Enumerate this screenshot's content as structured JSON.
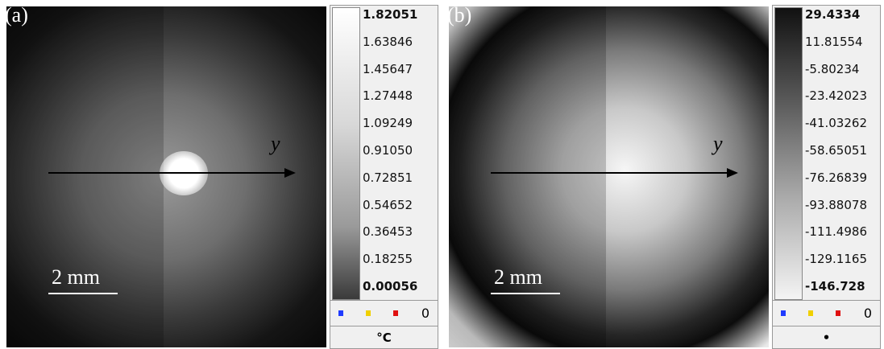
{
  "panels": [
    {
      "label": "(a)",
      "axis_label": "y",
      "scale_bar": "2 mm",
      "colorbar": {
        "labels": [
          "1.82051",
          "1.63846",
          "1.45647",
          "1.27448",
          "1.09249",
          "0.91050",
          "0.72851",
          "0.54652",
          "0.36453",
          "0.18255",
          "0.00056"
        ],
        "count": "0",
        "unit": "°C"
      }
    },
    {
      "label": "(b)",
      "axis_label": "y",
      "scale_bar": "2 mm",
      "colorbar": {
        "labels": [
          "29.4334",
          "11.81554",
          "-5.80234",
          "-23.42023",
          "-41.03262",
          "-58.65051",
          "-76.26839",
          "-93.88078",
          "-111.4986",
          "-129.1165",
          "-146.728"
        ],
        "count": "0",
        "unit": "•"
      }
    }
  ]
}
